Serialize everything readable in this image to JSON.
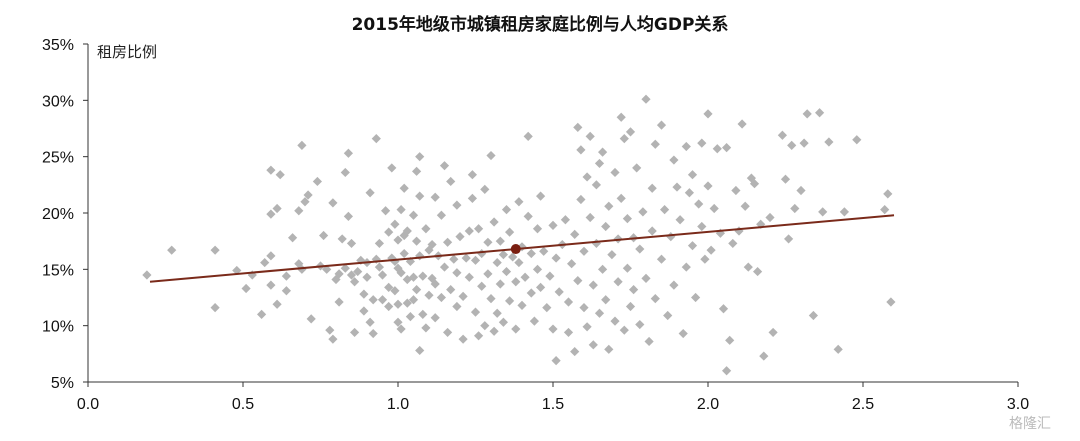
{
  "chart_data": {
    "type": "scatter",
    "title": "2015年地级市城镇租房家庭比例与人均GDP关系",
    "ylabel": "租房比例",
    "xlabel": "",
    "xlim": [
      0.0,
      3.0
    ],
    "ylim": [
      5,
      35
    ],
    "x_ticks": [
      "0.0",
      "0.5",
      "1.0",
      "1.5",
      "2.0",
      "2.5",
      "3.0"
    ],
    "y_ticks": [
      "5%",
      "10%",
      "15%",
      "20%",
      "25%",
      "30%",
      "35%"
    ],
    "grid": false,
    "colors": {
      "points": "#b3b3b3",
      "trend": "#7a2a1a",
      "mean_point": "#7a1e10"
    },
    "trend_line": {
      "x": [
        0.2,
        2.6
      ],
      "y": [
        13.9,
        19.8
      ]
    },
    "mean_point": {
      "x": 1.38,
      "y": 16.8
    },
    "points": [
      [
        0.19,
        14.5
      ],
      [
        0.27,
        16.7
      ],
      [
        0.41,
        16.7
      ],
      [
        0.41,
        11.6
      ],
      [
        0.48,
        14.9
      ],
      [
        0.51,
        13.3
      ],
      [
        0.53,
        14.5
      ],
      [
        0.56,
        11.0
      ],
      [
        0.57,
        15.6
      ],
      [
        0.59,
        16.2
      ],
      [
        0.59,
        13.6
      ],
      [
        0.59,
        19.9
      ],
      [
        0.59,
        23.8
      ],
      [
        0.61,
        20.4
      ],
      [
        0.61,
        11.9
      ],
      [
        0.62,
        23.4
      ],
      [
        0.64,
        14.4
      ],
      [
        0.64,
        13.1
      ],
      [
        0.66,
        17.8
      ],
      [
        0.68,
        20.2
      ],
      [
        0.68,
        15.5
      ],
      [
        0.69,
        26.0
      ],
      [
        0.69,
        15.0
      ],
      [
        0.7,
        21.0
      ],
      [
        0.71,
        21.6
      ],
      [
        0.72,
        10.6
      ],
      [
        0.74,
        22.8
      ],
      [
        0.75,
        15.3
      ],
      [
        0.76,
        18.0
      ],
      [
        0.77,
        15.0
      ],
      [
        0.78,
        9.6
      ],
      [
        0.79,
        20.9
      ],
      [
        0.79,
        8.8
      ],
      [
        0.8,
        14.1
      ],
      [
        0.81,
        12.1
      ],
      [
        0.81,
        14.6
      ],
      [
        0.82,
        17.7
      ],
      [
        0.83,
        15.1
      ],
      [
        0.83,
        23.6
      ],
      [
        0.84,
        25.3
      ],
      [
        0.84,
        19.7
      ],
      [
        0.85,
        17.3
      ],
      [
        0.85,
        14.5
      ],
      [
        0.86,
        13.9
      ],
      [
        0.86,
        9.4
      ],
      [
        0.87,
        14.8
      ],
      [
        0.88,
        15.8
      ],
      [
        0.89,
        12.8
      ],
      [
        0.89,
        11.3
      ],
      [
        0.9,
        14.3
      ],
      [
        0.9,
        15.6
      ],
      [
        0.91,
        10.3
      ],
      [
        0.91,
        21.8
      ],
      [
        0.92,
        12.3
      ],
      [
        0.92,
        9.3
      ],
      [
        0.93,
        26.6
      ],
      [
        0.93,
        15.9
      ],
      [
        0.94,
        17.3
      ],
      [
        0.94,
        15.2
      ],
      [
        0.95,
        12.3
      ],
      [
        0.95,
        14.5
      ],
      [
        0.96,
        20.2
      ],
      [
        0.97,
        13.4
      ],
      [
        0.97,
        11.7
      ],
      [
        0.97,
        18.3
      ],
      [
        0.98,
        24.0
      ],
      [
        0.98,
        16.0
      ],
      [
        0.99,
        19.0
      ],
      [
        0.99,
        15.7
      ],
      [
        0.99,
        13.1
      ],
      [
        1.0,
        11.9
      ],
      [
        1.0,
        10.3
      ],
      [
        1.0,
        15.1
      ],
      [
        1.0,
        17.6
      ],
      [
        1.01,
        20.3
      ],
      [
        1.01,
        9.7
      ],
      [
        1.01,
        14.7
      ],
      [
        1.02,
        18.0
      ],
      [
        1.02,
        22.2
      ],
      [
        1.02,
        16.4
      ],
      [
        1.03,
        14.1
      ],
      [
        1.03,
        12.0
      ],
      [
        1.03,
        18.4
      ],
      [
        1.04,
        15.7
      ],
      [
        1.04,
        10.8
      ],
      [
        1.05,
        19.8
      ],
      [
        1.05,
        14.3
      ],
      [
        1.05,
        12.3
      ],
      [
        1.06,
        23.7
      ],
      [
        1.06,
        17.5
      ],
      [
        1.06,
        13.2
      ],
      [
        1.07,
        21.5
      ],
      [
        1.07,
        16.2
      ],
      [
        1.07,
        7.8
      ],
      [
        1.07,
        25.0
      ],
      [
        1.08,
        14.4
      ],
      [
        1.08,
        11.0
      ],
      [
        1.09,
        18.6
      ],
      [
        1.09,
        9.8
      ],
      [
        1.1,
        16.7
      ],
      [
        1.1,
        12.7
      ],
      [
        1.11,
        14.2
      ],
      [
        1.11,
        17.2
      ],
      [
        1.12,
        21.4
      ],
      [
        1.12,
        10.7
      ],
      [
        1.12,
        13.7
      ],
      [
        1.13,
        16.2
      ],
      [
        1.14,
        19.8
      ],
      [
        1.14,
        12.5
      ],
      [
        1.15,
        24.2
      ],
      [
        1.15,
        15.2
      ],
      [
        1.16,
        9.4
      ],
      [
        1.16,
        17.4
      ],
      [
        1.17,
        13.2
      ],
      [
        1.17,
        22.8
      ],
      [
        1.18,
        15.9
      ],
      [
        1.19,
        11.7
      ],
      [
        1.19,
        20.7
      ],
      [
        1.19,
        14.7
      ],
      [
        1.2,
        17.9
      ],
      [
        1.21,
        12.6
      ],
      [
        1.21,
        8.8
      ],
      [
        1.22,
        16.0
      ],
      [
        1.23,
        18.4
      ],
      [
        1.23,
        14.3
      ],
      [
        1.24,
        21.3
      ],
      [
        1.24,
        23.4
      ],
      [
        1.25,
        11.2
      ],
      [
        1.25,
        15.8
      ],
      [
        1.26,
        9.1
      ],
      [
        1.26,
        18.6
      ],
      [
        1.27,
        13.5
      ],
      [
        1.27,
        16.4
      ],
      [
        1.28,
        22.1
      ],
      [
        1.28,
        10.0
      ],
      [
        1.29,
        17.4
      ],
      [
        1.29,
        14.6
      ],
      [
        1.3,
        12.4
      ],
      [
        1.3,
        25.1
      ],
      [
        1.31,
        9.5
      ],
      [
        1.31,
        19.2
      ],
      [
        1.32,
        15.6
      ],
      [
        1.32,
        11.1
      ],
      [
        1.33,
        17.5
      ],
      [
        1.33,
        13.7
      ],
      [
        1.34,
        10.3
      ],
      [
        1.34,
        16.3
      ],
      [
        1.35,
        14.8
      ],
      [
        1.35,
        20.3
      ],
      [
        1.36,
        12.2
      ],
      [
        1.36,
        18.3
      ],
      [
        1.37,
        16.1
      ],
      [
        1.38,
        13.9
      ],
      [
        1.38,
        9.7
      ],
      [
        1.39,
        15.6
      ],
      [
        1.39,
        21.0
      ],
      [
        1.4,
        11.8
      ],
      [
        1.4,
        17.0
      ],
      [
        1.41,
        14.3
      ],
      [
        1.42,
        26.8
      ],
      [
        1.42,
        19.7
      ],
      [
        1.43,
        12.9
      ],
      [
        1.43,
        16.4
      ],
      [
        1.44,
        10.4
      ],
      [
        1.45,
        15.0
      ],
      [
        1.45,
        18.6
      ],
      [
        1.46,
        13.4
      ],
      [
        1.46,
        21.5
      ],
      [
        1.47,
        16.6
      ],
      [
        1.48,
        11.6
      ],
      [
        1.49,
        14.4
      ],
      [
        1.5,
        9.7
      ],
      [
        1.5,
        18.9
      ],
      [
        1.51,
        6.9
      ],
      [
        1.51,
        16.0
      ],
      [
        1.52,
        13.0
      ],
      [
        1.53,
        17.2
      ],
      [
        1.54,
        19.4
      ],
      [
        1.55,
        12.1
      ],
      [
        1.55,
        9.4
      ],
      [
        1.56,
        15.5
      ],
      [
        1.57,
        18.1
      ],
      [
        1.57,
        7.7
      ],
      [
        1.58,
        27.6
      ],
      [
        1.58,
        14.0
      ],
      [
        1.59,
        25.6
      ],
      [
        1.59,
        21.2
      ],
      [
        1.6,
        11.6
      ],
      [
        1.6,
        16.6
      ],
      [
        1.61,
        23.2
      ],
      [
        1.61,
        9.9
      ],
      [
        1.62,
        26.8
      ],
      [
        1.62,
        19.6
      ],
      [
        1.63,
        13.6
      ],
      [
        1.63,
        8.3
      ],
      [
        1.64,
        22.5
      ],
      [
        1.64,
        17.3
      ],
      [
        1.65,
        24.4
      ],
      [
        1.65,
        11.1
      ],
      [
        1.66,
        25.4
      ],
      [
        1.66,
        15.0
      ],
      [
        1.67,
        18.8
      ],
      [
        1.67,
        12.3
      ],
      [
        1.68,
        20.6
      ],
      [
        1.68,
        7.9
      ],
      [
        1.69,
        16.3
      ],
      [
        1.7,
        23.6
      ],
      [
        1.7,
        10.4
      ],
      [
        1.71,
        17.7
      ],
      [
        1.71,
        13.9
      ],
      [
        1.72,
        28.5
      ],
      [
        1.72,
        21.3
      ],
      [
        1.73,
        26.6
      ],
      [
        1.73,
        9.6
      ],
      [
        1.74,
        15.1
      ],
      [
        1.74,
        19.5
      ],
      [
        1.75,
        27.2
      ],
      [
        1.75,
        11.7
      ],
      [
        1.76,
        17.8
      ],
      [
        1.76,
        13.2
      ],
      [
        1.77,
        24.0
      ],
      [
        1.78,
        16.8
      ],
      [
        1.78,
        10.1
      ],
      [
        1.79,
        20.1
      ],
      [
        1.8,
        30.1
      ],
      [
        1.8,
        14.2
      ],
      [
        1.81,
        8.6
      ],
      [
        1.82,
        22.2
      ],
      [
        1.82,
        18.4
      ],
      [
        1.83,
        26.1
      ],
      [
        1.83,
        12.4
      ],
      [
        1.85,
        27.8
      ],
      [
        1.85,
        15.9
      ],
      [
        1.86,
        20.3
      ],
      [
        1.87,
        10.9
      ],
      [
        1.88,
        17.9
      ],
      [
        1.89,
        24.7
      ],
      [
        1.89,
        13.6
      ],
      [
        1.9,
        22.3
      ],
      [
        1.91,
        19.4
      ],
      [
        1.92,
        9.3
      ],
      [
        1.93,
        25.9
      ],
      [
        1.93,
        15.2
      ],
      [
        1.94,
        21.8
      ],
      [
        1.95,
        23.4
      ],
      [
        1.95,
        17.1
      ],
      [
        1.96,
        12.5
      ],
      [
        1.97,
        20.8
      ],
      [
        1.98,
        26.2
      ],
      [
        1.98,
        18.8
      ],
      [
        1.99,
        15.9
      ],
      [
        2.0,
        22.4
      ],
      [
        2.0,
        28.8
      ],
      [
        2.01,
        16.7
      ],
      [
        2.02,
        20.4
      ],
      [
        2.03,
        25.7
      ],
      [
        2.04,
        18.2
      ],
      [
        2.05,
        11.5
      ],
      [
        2.06,
        25.8
      ],
      [
        2.06,
        6.0
      ],
      [
        2.07,
        8.7
      ],
      [
        2.08,
        17.3
      ],
      [
        2.09,
        22.0
      ],
      [
        2.1,
        18.4
      ],
      [
        2.11,
        27.9
      ],
      [
        2.12,
        20.6
      ],
      [
        2.13,
        15.2
      ],
      [
        2.14,
        23.1
      ],
      [
        2.15,
        22.6
      ],
      [
        2.16,
        14.8
      ],
      [
        2.17,
        19.0
      ],
      [
        2.18,
        7.3
      ],
      [
        2.2,
        19.6
      ],
      [
        2.21,
        9.4
      ],
      [
        2.24,
        26.9
      ],
      [
        2.25,
        23.0
      ],
      [
        2.26,
        17.7
      ],
      [
        2.27,
        26.0
      ],
      [
        2.28,
        20.4
      ],
      [
        2.3,
        22.0
      ],
      [
        2.31,
        26.2
      ],
      [
        2.32,
        28.8
      ],
      [
        2.34,
        10.9
      ],
      [
        2.36,
        28.9
      ],
      [
        2.37,
        20.1
      ],
      [
        2.39,
        26.3
      ],
      [
        2.42,
        7.9
      ],
      [
        2.44,
        20.1
      ],
      [
        2.48,
        26.5
      ],
      [
        2.57,
        20.3
      ],
      [
        2.58,
        21.7
      ],
      [
        2.59,
        12.1
      ]
    ]
  },
  "watermark": "格隆汇"
}
